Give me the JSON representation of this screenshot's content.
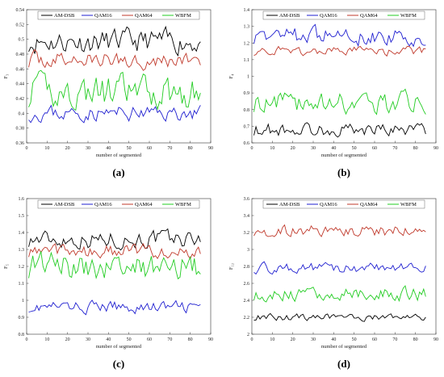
{
  "chart_data": [
    {
      "type": "line",
      "panel": "(a)",
      "xlabel": "number of segmented",
      "ylabel": "F₃",
      "xlim": [
        0,
        90
      ],
      "ylim": [
        0.36,
        0.54
      ],
      "xticks": [
        0,
        10,
        20,
        30,
        40,
        50,
        60,
        70,
        80,
        90
      ],
      "yticks": [
        0.36,
        0.38,
        0.4,
        0.42,
        0.44,
        0.46,
        0.48,
        0.5,
        0.52,
        0.54
      ],
      "legend_position": "top",
      "series": [
        {
          "name": "AM-DSB",
          "color": "#000000",
          "mean": 0.497,
          "amp": 0.014,
          "start": 1,
          "end": 85,
          "seed": 11
        },
        {
          "name": "QAM16",
          "color": "#1f1fd0",
          "mean": 0.4,
          "amp": 0.009,
          "start": 1,
          "end": 85,
          "seed": 23
        },
        {
          "name": "QAM64",
          "color": "#c0392b",
          "mean": 0.472,
          "amp": 0.01,
          "start": 1,
          "end": 85,
          "seed": 37
        },
        {
          "name": "WBFM",
          "color": "#22cc22",
          "mean": 0.428,
          "amp": 0.02,
          "start": 1,
          "end": 85,
          "seed": 41
        }
      ]
    },
    {
      "type": "line",
      "panel": "(b)",
      "xlabel": "number of segmented",
      "ylabel": "F₄",
      "xlim": [
        0,
        90
      ],
      "ylim": [
        0.6,
        1.4
      ],
      "xticks": [
        0,
        10,
        20,
        30,
        40,
        50,
        60,
        70,
        80,
        90
      ],
      "yticks": [
        0.6,
        0.7,
        0.8,
        0.9,
        1.0,
        1.1,
        1.2,
        1.3,
        1.4
      ],
      "legend_position": "top",
      "series": [
        {
          "name": "AM-DSB",
          "color": "#000000",
          "mean": 0.68,
          "amp": 0.035,
          "start": 1,
          "end": 85,
          "seed": 53
        },
        {
          "name": "QAM16",
          "color": "#1f1fd0",
          "mean": 1.24,
          "amp": 0.045,
          "start": 1,
          "end": 85,
          "seed": 67
        },
        {
          "name": "QAM64",
          "color": "#c0392b",
          "mean": 1.15,
          "amp": 0.025,
          "start": 1,
          "end": 85,
          "seed": 71
        },
        {
          "name": "WBFM",
          "color": "#22cc22",
          "mean": 0.84,
          "amp": 0.055,
          "start": 1,
          "end": 85,
          "seed": 83
        }
      ]
    },
    {
      "type": "line",
      "panel": "(c)",
      "xlabel": "number of segmented",
      "ylabel": "F₅",
      "xlim": [
        0,
        90
      ],
      "ylim": [
        0.8,
        1.6
      ],
      "xticks": [
        0,
        10,
        20,
        30,
        40,
        50,
        60,
        70,
        80,
        90
      ],
      "yticks": [
        0.8,
        0.9,
        1.0,
        1.1,
        1.2,
        1.3,
        1.4,
        1.5,
        1.6
      ],
      "legend_position": "top",
      "series": [
        {
          "name": "AM-DSB",
          "color": "#000000",
          "mean": 1.36,
          "amp": 0.045,
          "start": 1,
          "end": 85,
          "seed": 97
        },
        {
          "name": "QAM16",
          "color": "#1f1fd0",
          "mean": 0.96,
          "amp": 0.03,
          "start": 1,
          "end": 85,
          "seed": 101
        },
        {
          "name": "QAM64",
          "color": "#c0392b",
          "mean": 1.29,
          "amp": 0.035,
          "start": 1,
          "end": 85,
          "seed": 113
        },
        {
          "name": "WBFM",
          "color": "#22cc22",
          "mean": 1.2,
          "amp": 0.07,
          "start": 1,
          "end": 85,
          "seed": 127
        }
      ]
    },
    {
      "type": "line",
      "panel": "(d)",
      "xlabel": "number of segmented",
      "ylabel": "F₁₂",
      "xlim": [
        0,
        90
      ],
      "ylim": [
        2.0,
        3.6
      ],
      "xticks": [
        0,
        10,
        20,
        30,
        40,
        50,
        60,
        70,
        80,
        90
      ],
      "yticks": [
        2.0,
        2.2,
        2.4,
        2.6,
        2.8,
        3.0,
        3.2,
        3.4,
        3.6
      ],
      "legend_position": "top",
      "series": [
        {
          "name": "AM-DSB",
          "color": "#000000",
          "mean": 2.2,
          "amp": 0.035,
          "start": 1,
          "end": 85,
          "seed": 131
        },
        {
          "name": "QAM16",
          "color": "#1f1fd0",
          "mean": 2.78,
          "amp": 0.05,
          "start": 1,
          "end": 85,
          "seed": 137
        },
        {
          "name": "QAM64",
          "color": "#c0392b",
          "mean": 3.22,
          "amp": 0.06,
          "start": 1,
          "end": 85,
          "seed": 149
        },
        {
          "name": "WBFM",
          "color": "#22cc22",
          "mean": 2.47,
          "amp": 0.07,
          "start": 1,
          "end": 85,
          "seed": 151
        }
      ]
    }
  ]
}
